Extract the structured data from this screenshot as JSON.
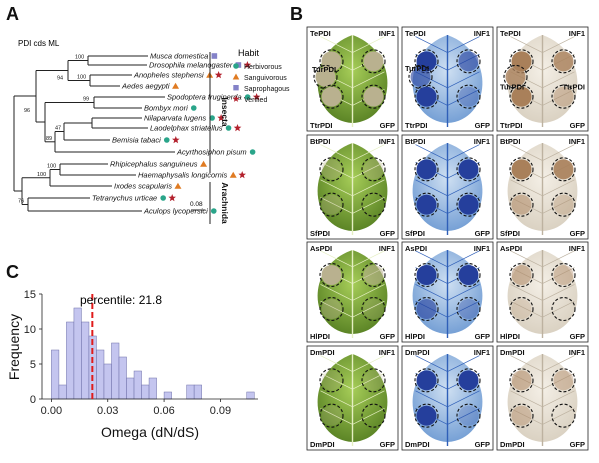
{
  "panels": {
    "a": "A",
    "b": "B",
    "c": "C"
  },
  "tree": {
    "title": "PDI cds ML",
    "scale": "0.08",
    "groups": [
      "Insecta",
      "Arachnida"
    ],
    "taxa": [
      "Musca domestica",
      "Drosophila melanogaster",
      "Anopheles stephensi",
      "Aedes aegypti",
      "Spodoptera frugiperda",
      "Bombyx mori",
      "Nilaparvata lugens",
      "Laodelphax striatellus",
      "Bemisia tabaci",
      "Acyrthosiphon pisum",
      "Rhipicephalus sanguineus",
      "Haemaphysalis longicornis",
      "Ixodes scapularis",
      "Tetranychus urticae",
      "Aculops lycopersici"
    ],
    "bootstrap": [
      "100",
      "100",
      "94",
      "99",
      "96",
      "47",
      "89",
      "100",
      "100",
      "76"
    ]
  },
  "habit": {
    "title": "Habit",
    "items": [
      "Herbivorous",
      "Sanguivorous",
      "Saprophagous",
      "Verified"
    ],
    "colors": {
      "herbivorous": "#2aa58a",
      "sanguivorous": "#e07b22",
      "saprophagous": "#8482c8",
      "verified": "#b3212d"
    }
  },
  "leaves": [
    {
      "tl": "TePDI",
      "tr": "INF1",
      "ml": "TurPDI",
      "bl": "TtrPDI",
      "br": "GFP"
    },
    {
      "tl": "BtPDI",
      "tr": "INF1",
      "bl": "SfPDI",
      "br": "GFP"
    },
    {
      "tl": "AsPDI",
      "tr": "INF1",
      "bl": "HlPDI",
      "br": "GFP"
    },
    {
      "tl": "DmPDI",
      "tr": "INF1",
      "bl": "DmPDI",
      "br": "GFP"
    }
  ],
  "leaf_extra": {
    "trypan_ml": "TurPDI",
    "dab_ml": "TurPDI",
    "dab_mr": "TtrPDI"
  },
  "chart_data": {
    "type": "bar",
    "xlabel": "Omega (dN/dS)",
    "ylabel": "Frequency",
    "xlim": [
      -0.005,
      0.11
    ],
    "ylim": [
      0,
      15
    ],
    "xticks": [
      "0.00",
      "0.03",
      "0.06",
      "0.09"
    ],
    "yticks": [
      "0",
      "5",
      "10",
      "15"
    ],
    "bin_width": 0.004,
    "bin_starts": [
      0.0,
      0.004,
      0.008,
      0.012,
      0.016,
      0.02,
      0.024,
      0.028,
      0.032,
      0.036,
      0.04,
      0.044,
      0.048,
      0.052,
      0.056,
      0.06,
      0.064,
      0.068,
      0.072,
      0.076,
      0.08,
      0.084,
      0.088,
      0.092,
      0.096,
      0.1,
      0.104
    ],
    "values": [
      7,
      2,
      11,
      13,
      11,
      9,
      7,
      5,
      8,
      6,
      3,
      4,
      2,
      3,
      0,
      1,
      0,
      0,
      2,
      2,
      0,
      0,
      0,
      0,
      0,
      0,
      1
    ],
    "percentile_value": 0.0218,
    "annotation": "percentile: 21.8"
  }
}
